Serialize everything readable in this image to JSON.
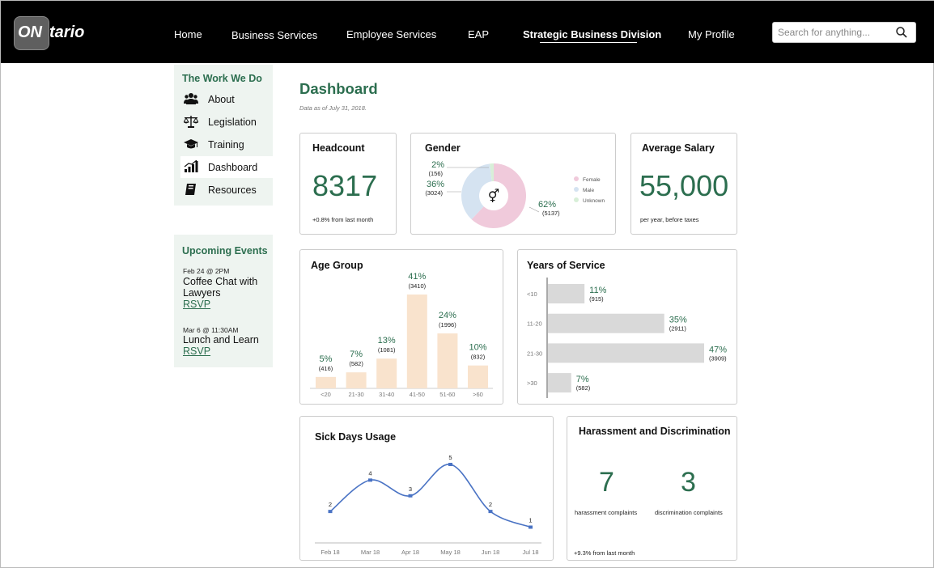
{
  "logo": {
    "on": "ON",
    "rest": "tario"
  },
  "nav": {
    "items": [
      {
        "label": "Home"
      },
      {
        "label": "Business Services"
      },
      {
        "label": "Employee Services"
      },
      {
        "label": "EAP"
      },
      {
        "label": "Strategic Business Division",
        "active": true
      },
      {
        "label": "My Profile"
      }
    ]
  },
  "search": {
    "placeholder": "Search for anything..."
  },
  "sidebar": {
    "title": "The Work We Do",
    "items": [
      {
        "label": "About",
        "icon": "people-icon"
      },
      {
        "label": "Legislation",
        "icon": "scales-icon"
      },
      {
        "label": "Training",
        "icon": "graduation-cap-icon"
      },
      {
        "label": "Dashboard",
        "icon": "bar-chart-icon",
        "active": true
      },
      {
        "label": "Resources",
        "icon": "book-icon"
      }
    ]
  },
  "events": {
    "title": "Upcoming Events",
    "items": [
      {
        "date": "Feb 24 @ 2PM",
        "title": "Coffee Chat with Lawyers",
        "rsvp": "RSVP"
      },
      {
        "date": "Mar 6 @ 11:30AM",
        "title": "Lunch and Learn",
        "rsvp": "RSVP"
      }
    ]
  },
  "dashboard": {
    "title": "Dashboard",
    "subtitle": "Data as of July 31, 2018.",
    "headcount": {
      "title": "Headcount",
      "value": "8317",
      "note": "+0.8% from last month"
    },
    "gender": {
      "title": "Gender",
      "symbol": "⚥",
      "legend": [
        "Female",
        "Male",
        "Unknown"
      ],
      "colors": {
        "Female": "#f0cadb",
        "Male": "#d5e3f1",
        "Unknown": "#d8efd8"
      }
    },
    "salary": {
      "title": "Average Salary",
      "value": "55,000",
      "note": "per year, before taxes"
    },
    "age": {
      "title": "Age Group",
      "bar_color": "#f9e3cd"
    },
    "service": {
      "title": "Years of Service",
      "bar_color": "#d9d9d9"
    },
    "sick": {
      "title": "Sick Days Usage",
      "line_color": "#4a73c4"
    },
    "harassment": {
      "title": "Harassment and Discrimination",
      "harassment_value": "7",
      "harassment_label": "harassment complaints",
      "discrimination_value": "3",
      "discrimination_label": "discrimination complaints",
      "note": "+9.3% from last month"
    }
  },
  "chart_data": [
    {
      "type": "pie",
      "title": "Gender",
      "categories": [
        "Female",
        "Male",
        "Unknown"
      ],
      "values": [
        62,
        36,
        2
      ],
      "percent_labels": [
        "62%",
        "36%",
        "2%"
      ],
      "counts": [
        "(5137)",
        "(3024)",
        "(156)"
      ]
    },
    {
      "type": "bar",
      "title": "Age Group",
      "categories": [
        "<20",
        "21-30",
        "31-40",
        "41-50",
        "51-60",
        ">60"
      ],
      "values": [
        5,
        7,
        13,
        41,
        24,
        10
      ],
      "percent_labels": [
        "5%",
        "7%",
        "13%",
        "41%",
        "24%",
        "10%"
      ],
      "counts": [
        "(416)",
        "(582)",
        "(1081)",
        "(3410)",
        "(1996)",
        "(832)"
      ]
    },
    {
      "type": "bar",
      "orientation": "horizontal",
      "title": "Years of Service",
      "categories": [
        "<10",
        "11-20",
        "21-30",
        ">30"
      ],
      "values": [
        11,
        35,
        47,
        7
      ],
      "percent_labels": [
        "11%",
        "35%",
        "47%",
        "7%"
      ],
      "counts": [
        "(915)",
        "(2911)",
        "(3909)",
        "(582)"
      ]
    },
    {
      "type": "line",
      "title": "Sick Days Usage",
      "x": [
        "Feb 18",
        "Mar 18",
        "Apr 18",
        "May 18",
        "Jun 18",
        "Jul 18"
      ],
      "values": [
        2,
        4,
        3,
        5,
        2,
        1
      ],
      "ylim": [
        0,
        6
      ]
    }
  ]
}
